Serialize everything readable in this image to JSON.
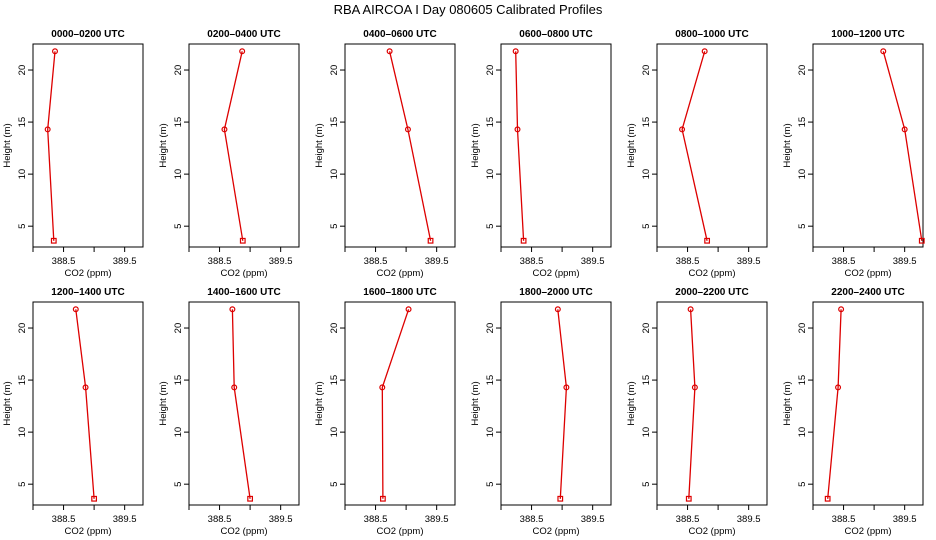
{
  "title": "RBA AIRCOA I  Day 080605  Calibrated Profiles",
  "chart_data": {
    "type": "line",
    "xlabel": "CO2 (ppm)",
    "ylabel": "Height (m)",
    "xlim": [
      388.0,
      389.8
    ],
    "ylim": [
      3.0,
      22.5
    ],
    "xticks": [
      388.0,
      388.5,
      389.0,
      389.5
    ],
    "xtick_labels": [
      "",
      "388.5",
      "",
      "389.5"
    ],
    "yticks": [
      5,
      10,
      15,
      20
    ],
    "ytick_labels": [
      "5",
      "10",
      "15",
      "20"
    ],
    "series_color": "#dd0000",
    "grid": false,
    "panels": [
      {
        "title": "0000–0200 UTC",
        "x": [
          388.36,
          388.24,
          388.34
        ],
        "y": [
          21.8,
          14.3,
          3.6
        ]
      },
      {
        "title": "0200–0400 UTC",
        "x": [
          388.87,
          388.58,
          388.88
        ],
        "y": [
          21.8,
          14.3,
          3.6
        ]
      },
      {
        "title": "0400–0600 UTC",
        "x": [
          388.73,
          389.03,
          389.4
        ],
        "y": [
          21.8,
          14.3,
          3.6
        ]
      },
      {
        "title": "0600–0800 UTC",
        "x": [
          388.24,
          388.27,
          388.37
        ],
        "y": [
          21.8,
          14.3,
          3.6
        ]
      },
      {
        "title": "0800–1000 UTC",
        "x": [
          388.78,
          388.41,
          388.82
        ],
        "y": [
          21.8,
          14.3,
          3.6
        ]
      },
      {
        "title": "1000–1200 UTC",
        "x": [
          389.15,
          389.5,
          389.78
        ],
        "y": [
          21.8,
          14.3,
          3.6
        ]
      },
      {
        "title": "1200–1400 UTC",
        "x": [
          388.7,
          388.86,
          389.0
        ],
        "y": [
          21.8,
          14.3,
          3.6
        ]
      },
      {
        "title": "1400–1600 UTC",
        "x": [
          388.71,
          388.74,
          389.0
        ],
        "y": [
          21.8,
          14.3,
          3.6
        ]
      },
      {
        "title": "1600–1800 UTC",
        "x": [
          389.04,
          388.61,
          388.62
        ],
        "y": [
          21.8,
          14.3,
          3.6
        ]
      },
      {
        "title": "1800–2000 UTC",
        "x": [
          388.93,
          389.07,
          388.97
        ],
        "y": [
          21.8,
          14.3,
          3.6
        ]
      },
      {
        "title": "2000–2200 UTC",
        "x": [
          388.55,
          388.62,
          388.52
        ],
        "y": [
          21.8,
          14.3,
          3.6
        ]
      },
      {
        "title": "2200–2400 UTC",
        "x": [
          388.46,
          388.41,
          388.24
        ],
        "y": [
          21.8,
          14.3,
          3.6
        ]
      }
    ]
  }
}
